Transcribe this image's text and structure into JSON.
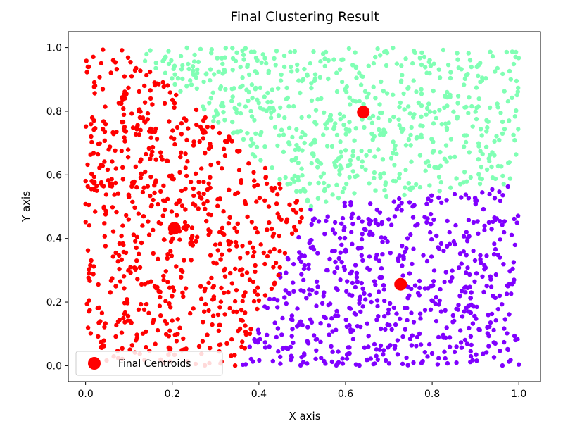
{
  "chart_data": {
    "type": "scatter",
    "title": "Final Clustering Result",
    "xlabel": "X axis",
    "ylabel": "Y axis",
    "xlim": [
      -0.04,
      1.05
    ],
    "ylim": [
      -0.05,
      1.05
    ],
    "xticks": [
      "0.0",
      "0.2",
      "0.4",
      "0.6",
      "0.8",
      "1.0"
    ],
    "xtick_values": [
      0.0,
      0.2,
      0.4,
      0.6,
      0.8,
      1.0
    ],
    "yticks": [
      "0.0",
      "0.2",
      "0.4",
      "0.6",
      "0.8",
      "1.0"
    ],
    "ytick_values": [
      0.0,
      0.2,
      0.4,
      0.6,
      0.8,
      1.0
    ],
    "grid": false,
    "legend_position": "lower-left",
    "series": [
      {
        "color": "#ff0000",
        "region": "cluster-left",
        "approx_points": 700
      },
      {
        "color": "#80ffb4",
        "region": "cluster-top-right",
        "approx_points": 700
      },
      {
        "color": "#8000ff",
        "region": "cluster-bottom-right",
        "approx_points": 600
      }
    ],
    "centroids": {
      "name": "Final Centroids",
      "color": "#ff0000",
      "points": [
        {
          "x": 0.205,
          "y": 0.432
        },
        {
          "x": 0.641,
          "y": 0.797
        },
        {
          "x": 0.727,
          "y": 0.256
        }
      ]
    }
  }
}
